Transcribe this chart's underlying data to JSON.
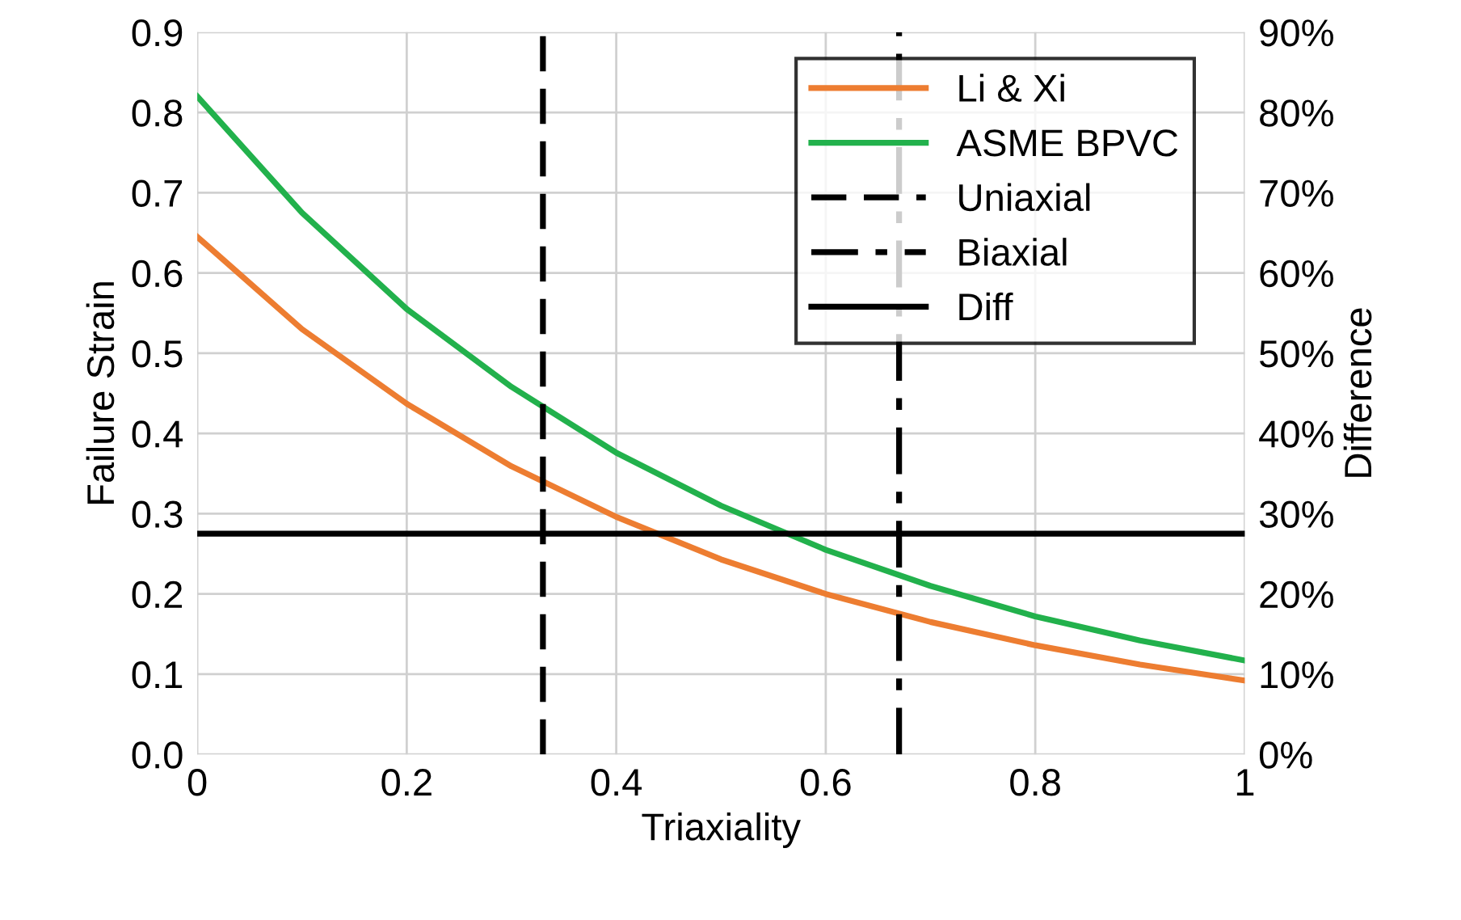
{
  "chart_data": {
    "type": "line",
    "xlabel": "Triaxiality",
    "ylabel": "Failure Strain",
    "y2label": "Difference",
    "x": [
      0,
      0.1,
      0.2,
      0.3,
      0.4,
      0.5,
      0.6,
      0.7,
      0.8,
      0.9,
      1.0
    ],
    "series": [
      {
        "name": "Li & Xi",
        "color": "#ed7d31",
        "values": [
          0.645,
          0.53,
          0.437,
          0.359,
          0.296,
          0.243,
          0.2,
          0.165,
          0.136,
          0.112,
          0.092
        ]
      },
      {
        "name": "ASME BPVC",
        "color": "#22b14c",
        "values": [
          0.82,
          0.675,
          0.555,
          0.458,
          0.376,
          0.31,
          0.255,
          0.21,
          0.172,
          0.142,
          0.117
        ]
      },
      {
        "name": "Uniaxial",
        "color": "#000000",
        "line_style": "dashed",
        "x": [
          0.33,
          0.33
        ],
        "values": [
          0,
          0.9
        ]
      },
      {
        "name": "Biaxial",
        "color": "#000000",
        "line_style": "dashdot",
        "x": [
          0.67,
          0.67
        ],
        "values": [
          0,
          0.9
        ]
      },
      {
        "name": "Diff",
        "color": "#000000",
        "axis": "y2",
        "x": [
          0,
          1
        ],
        "values": [
          27.5,
          27.5
        ]
      }
    ],
    "xlim": [
      0,
      1
    ],
    "xticks": [
      0,
      0.2,
      0.4,
      0.6,
      0.8,
      1
    ],
    "ylim": [
      0,
      0.9
    ],
    "yticks": [
      {
        "value": 0,
        "label": "0.0"
      },
      0.1,
      0.2,
      0.3,
      0.4,
      0.5,
      0.6,
      0.7,
      0.8,
      0.9
    ],
    "y2lim": [
      0,
      90
    ],
    "y2ticks": [
      {
        "value": 0,
        "label": "0%"
      },
      {
        "value": 10,
        "label": "10%"
      },
      {
        "value": 20,
        "label": "20%"
      },
      {
        "value": 30,
        "label": "30%"
      },
      {
        "value": 40,
        "label": "40%"
      },
      {
        "value": 50,
        "label": "50%"
      },
      {
        "value": 60,
        "label": "60%"
      },
      {
        "value": 70,
        "label": "70%"
      },
      {
        "value": 80,
        "label": "80%"
      },
      {
        "value": 90,
        "label": "90%"
      }
    ],
    "grid": true,
    "legend": "top right",
    "marker": "none"
  }
}
